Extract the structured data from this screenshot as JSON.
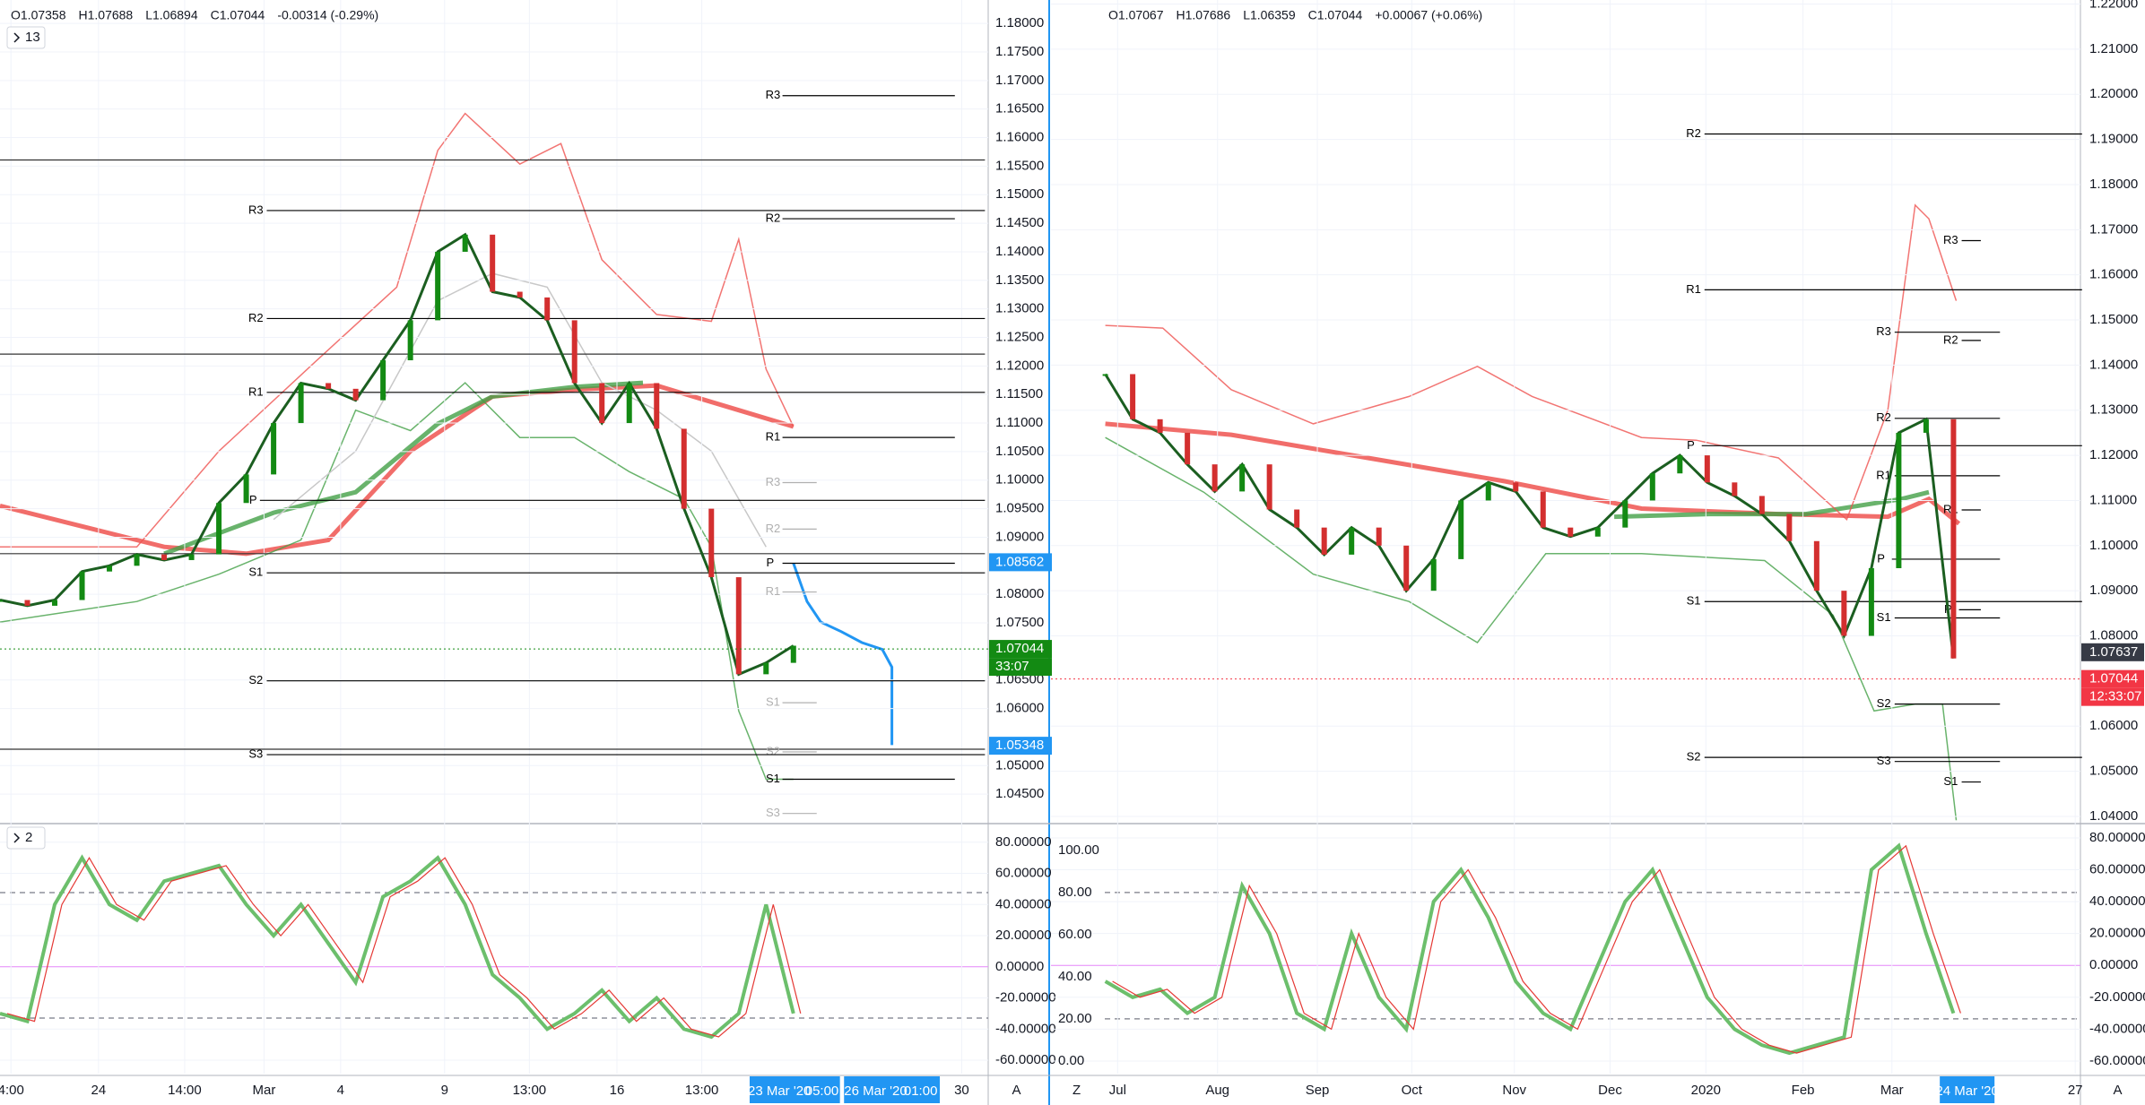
{
  "left": {
    "header": [
      "O1.07358",
      "H1.07688",
      "L1.06894",
      "C1.07044",
      "-0.00314 (-0.29%)"
    ],
    "study_badge": "13",
    "osc_badge": "2",
    "price": {
      "ylim": [
        1.04,
        1.1841
      ],
      "yticks": [
        {
          "value": 1.18,
          "label": "1.18000"
        },
        {
          "value": 1.175,
          "label": "1.17500"
        },
        {
          "value": 1.17,
          "label": "1.17000"
        },
        {
          "value": 1.165,
          "label": "1.16500"
        },
        {
          "value": 1.16,
          "label": "1.16000"
        },
        {
          "value": 1.155,
          "label": "1.15500"
        },
        {
          "value": 1.15,
          "label": "1.15000"
        },
        {
          "value": 1.145,
          "label": "1.14500"
        },
        {
          "value": 1.14,
          "label": "1.14000"
        },
        {
          "value": 1.135,
          "label": "1.13500"
        },
        {
          "value": 1.13,
          "label": "1.13000"
        },
        {
          "value": 1.125,
          "label": "1.12500"
        },
        {
          "value": 1.12,
          "label": "1.12000"
        },
        {
          "value": 1.115,
          "label": "1.11500"
        },
        {
          "value": 1.11,
          "label": "1.11000"
        },
        {
          "value": 1.105,
          "label": "1.10500"
        },
        {
          "value": 1.1,
          "label": "1.10000"
        },
        {
          "value": 1.095,
          "label": "1.09500"
        },
        {
          "value": 1.09,
          "label": "1.09000"
        },
        {
          "value": 1.08,
          "label": "1.08000"
        },
        {
          "value": 1.075,
          "label": "1.07500"
        },
        {
          "value": 1.065,
          "label": "1.06500"
        },
        {
          "value": 1.06,
          "label": "1.06000"
        },
        {
          "value": 1.05,
          "label": "1.05000"
        },
        {
          "value": 1.045,
          "label": "1.04500"
        }
      ],
      "close": [
        1.079,
        1.078,
        1.079,
        1.084,
        1.085,
        1.087,
        1.086,
        1.087,
        1.096,
        1.101,
        1.11,
        1.117,
        1.116,
        1.114,
        1.121,
        1.128,
        1.14,
        1.143,
        1.133,
        1.132,
        1.128,
        1.117,
        1.11,
        1.117,
        1.109,
        1.095,
        1.083,
        1.066,
        1.068,
        1.071
      ],
      "color": "#1b5e20"
    },
    "tags": [
      {
        "value": 1.08562,
        "label": "1.08562",
        "color": "#2196f3"
      },
      {
        "value": 1.07044,
        "label": "1.07044",
        "color": "#138a13",
        "timer": "33:07"
      },
      {
        "value": 1.05348,
        "label": "1.05348",
        "color": "#2196f3"
      }
    ],
    "pivots": [
      "R3",
      "R2",
      "R1",
      "R3",
      "R2",
      "P",
      "R1",
      "S1",
      "S2",
      "S1",
      "S3",
      "R3",
      "R2",
      "R1",
      "P",
      "S1",
      "S2",
      "S3"
    ],
    "osc": {
      "ylim": [
        -68.6,
        91.4
      ],
      "yticks": [
        {
          "value": 80,
          "label": "80.00000"
        },
        {
          "value": 60,
          "label": "60.00000"
        },
        {
          "value": 40,
          "label": "40.00000"
        },
        {
          "value": 20,
          "label": "20.00000"
        },
        {
          "value": 0,
          "label": "0.00000"
        },
        {
          "value": -20,
          "label": "-20.00000"
        },
        {
          "value": -40,
          "label": "-40.00000"
        },
        {
          "value": -60,
          "label": "-60.00000"
        }
      ],
      "values": [
        -30,
        -35,
        40,
        70,
        40,
        30,
        55,
        60,
        65,
        40,
        20,
        40,
        15,
        -10,
        45,
        55,
        70,
        40,
        -5,
        -20,
        -40,
        -30,
        -15,
        -35,
        -20,
        -40,
        -45,
        -30,
        40,
        -30
      ],
      "color": "#6cbf6c"
    },
    "time_labels": [
      "4:00",
      "24",
      "14:00",
      "Mar",
      "4",
      "9",
      "13:00",
      "16",
      "13:00",
      "30"
    ],
    "date_boxes": [
      [
        "23 Mar '20",
        "05:00"
      ],
      [
        "26 Mar '20",
        "01:00"
      ]
    ],
    "button": "A"
  },
  "right": {
    "header": [
      "O1.07067",
      "H1.07686",
      "L1.06359",
      "C1.07044",
      "+0.00067 (+0.06%)"
    ],
    "price": {
      "ylim": [
        1.0386,
        1.2209
      ],
      "yticks": [
        {
          "value": 1.22,
          "label": "1.22000"
        },
        {
          "value": 1.21,
          "label": "1.21000"
        },
        {
          "value": 1.2,
          "label": "1.20000"
        },
        {
          "value": 1.19,
          "label": "1.19000"
        },
        {
          "value": 1.18,
          "label": "1.18000"
        },
        {
          "value": 1.17,
          "label": "1.17000"
        },
        {
          "value": 1.16,
          "label": "1.16000"
        },
        {
          "value": 1.15,
          "label": "1.15000"
        },
        {
          "value": 1.14,
          "label": "1.14000"
        },
        {
          "value": 1.13,
          "label": "1.13000"
        },
        {
          "value": 1.12,
          "label": "1.12000"
        },
        {
          "value": 1.11,
          "label": "1.11000"
        },
        {
          "value": 1.1,
          "label": "1.10000"
        },
        {
          "value": 1.09,
          "label": "1.09000"
        },
        {
          "value": 1.08,
          "label": "1.08000"
        },
        {
          "value": 1.06,
          "label": "1.06000"
        },
        {
          "value": 1.05,
          "label": "1.05000"
        },
        {
          "value": 1.04,
          "label": "1.04000"
        }
      ],
      "close": [
        1.138,
        1.128,
        1.125,
        1.118,
        1.112,
        1.118,
        1.108,
        1.104,
        1.098,
        1.104,
        1.1,
        1.09,
        1.097,
        1.11,
        1.114,
        1.112,
        1.104,
        1.102,
        1.104,
        1.11,
        1.116,
        1.12,
        1.114,
        1.111,
        1.107,
        1.101,
        1.09,
        1.08,
        1.095,
        1.125,
        1.128,
        1.075
      ],
      "color": "#1b5e20"
    },
    "tags": [
      {
        "value": 1.07637,
        "label": "1.07637",
        "color": "#363a45"
      },
      {
        "value": 1.07044,
        "label": "1.07044",
        "color": "#f23645",
        "timer": "12:33:07"
      }
    ],
    "pivots": [
      "R2",
      "R1",
      "P",
      "R3",
      "R2",
      "R1",
      "P",
      "S1",
      "S1",
      "S2",
      "S2",
      "S3",
      "R3",
      "R2",
      "R1",
      "P",
      "S1"
    ],
    "osc": {
      "ylim": [
        -67.9,
        88.4
      ],
      "yticks": [
        {
          "value": 80,
          "label": "80.00000"
        },
        {
          "value": 60,
          "label": "60.00000"
        },
        {
          "value": 40,
          "label": "40.00000"
        },
        {
          "value": 20,
          "label": "20.00000"
        },
        {
          "value": 0,
          "label": "0.00000"
        },
        {
          "value": -20,
          "label": "-20.00000"
        },
        {
          "value": -40,
          "label": "-40.00000"
        },
        {
          "value": -60,
          "label": "-60.00000"
        }
      ],
      "y2lim": [
        -6,
        112.3
      ],
      "y2ticks": [
        {
          "value": 100,
          "label": "100.00"
        },
        {
          "value": 80,
          "label": "80.00"
        },
        {
          "value": 60,
          "label": "60.00"
        },
        {
          "value": 40,
          "label": "40.00"
        },
        {
          "value": 20,
          "label": "20.00"
        },
        {
          "value": 0,
          "label": "0.00"
        }
      ],
      "values": [
        -10,
        -20,
        -15,
        -30,
        -20,
        50,
        20,
        -30,
        -40,
        20,
        -20,
        -40,
        40,
        60,
        30,
        -10,
        -30,
        -40,
        0,
        40,
        60,
        20,
        -20,
        -40,
        -50,
        -55,
        -50,
        -45,
        60,
        75,
        20,
        -30
      ],
      "color": "#6cbf6c"
    },
    "time_labels": [
      "Jul",
      "Aug",
      "Sep",
      "Oct",
      "Nov",
      "Dec",
      "2020",
      "Feb",
      "Mar",
      "27"
    ],
    "date_boxes": [
      [
        "24 Mar '20"
      ]
    ],
    "button_left": "Z",
    "button": "A"
  }
}
